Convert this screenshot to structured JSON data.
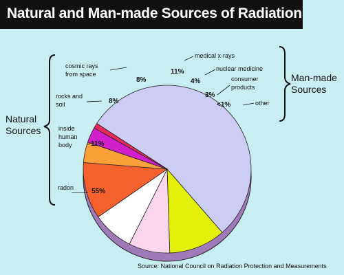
{
  "chart_data": {
    "type": "pie",
    "title": "Natural and Man-made Sources of Radiation",
    "slices": [
      {
        "label": "radon",
        "value": 55,
        "display": "55%",
        "color": "#ccccf5",
        "group": "natural"
      },
      {
        "label": "inside human body",
        "value": 11,
        "display": "11%",
        "color": "#e2f00a",
        "group": "natural"
      },
      {
        "label": "rocks and soil",
        "value": 8,
        "display": "8%",
        "color": "#fcd6ec",
        "group": "natural"
      },
      {
        "label": "cosmic rays from space",
        "value": 8,
        "display": "8%",
        "color": "#ffffff",
        "group": "natural"
      },
      {
        "label": "medical x-rays",
        "value": 11,
        "display": "11%",
        "color": "#f5612d",
        "group": "man-made"
      },
      {
        "label": "nuclear medicine",
        "value": 4,
        "display": "4%",
        "color": "#fca13a",
        "group": "man-made"
      },
      {
        "label": "consumer products",
        "value": 3,
        "display": "3%",
        "color": "#d11fcc",
        "group": "man-made"
      },
      {
        "label": "other",
        "value": 1,
        "display": "<1%",
        "color": "#e32a58",
        "group": "man-made"
      }
    ],
    "groups": {
      "natural": "Natural Sources",
      "man-made": "Man-made Sources"
    },
    "source": "Source:  National Council on Radiation Protection and Measurements",
    "background_color": "#c8eef2",
    "shadow_color": "#a07ab8"
  }
}
